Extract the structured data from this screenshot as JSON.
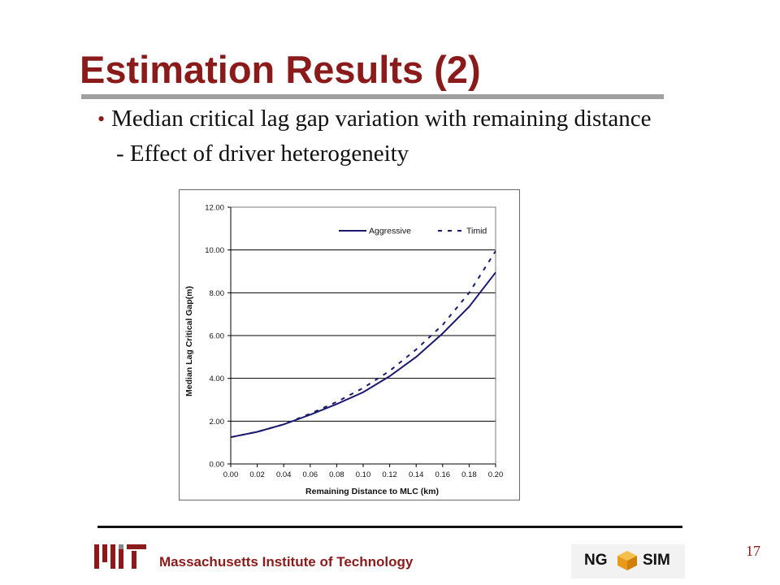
{
  "slide": {
    "title": "Estimation Results (2)",
    "bullet": "Median critical lag gap variation with remaining distance",
    "sub_bullet": "- Effect of driver heterogeneity",
    "page_number": "17"
  },
  "footer": {
    "institution": "Massachusetts Institute of Technology",
    "logo_left": "MIT",
    "logo_right_left": "NG",
    "logo_right_right": "SIM"
  },
  "colors": {
    "title": "#8b1a1a",
    "series_line": "#1a1a6e",
    "gridline": "#000000",
    "rule": "#a0a0a0"
  },
  "chart_data": {
    "type": "line",
    "xlabel": "Remaining Distance to MLC (km)",
    "ylabel": "Median Lag Critical Gap(m)",
    "xlim": [
      0,
      0.2
    ],
    "ylim": [
      0,
      12
    ],
    "x_ticks": [
      "0.00",
      "0.02",
      "0.04",
      "0.06",
      "0.08",
      "0.10",
      "0.12",
      "0.14",
      "0.16",
      "0.18",
      "0.20"
    ],
    "y_ticks": [
      "0.00",
      "2.00",
      "4.00",
      "6.00",
      "8.00",
      "10.00",
      "12.00"
    ],
    "grid": "horizontal",
    "legend_position": "top-right",
    "x": [
      0.0,
      0.02,
      0.04,
      0.06,
      0.08,
      0.1,
      0.12,
      0.14,
      0.16,
      0.18,
      0.2
    ],
    "series": [
      {
        "name": "Aggressive",
        "style": "solid",
        "values": [
          1.25,
          1.5,
          1.85,
          2.3,
          2.8,
          3.35,
          4.1,
          5.0,
          6.1,
          7.35,
          8.95
        ]
      },
      {
        "name": "Timid",
        "style": "dashed",
        "values": [
          1.25,
          1.5,
          1.85,
          2.35,
          2.9,
          3.55,
          4.35,
          5.35,
          6.5,
          8.0,
          9.95
        ]
      }
    ]
  }
}
